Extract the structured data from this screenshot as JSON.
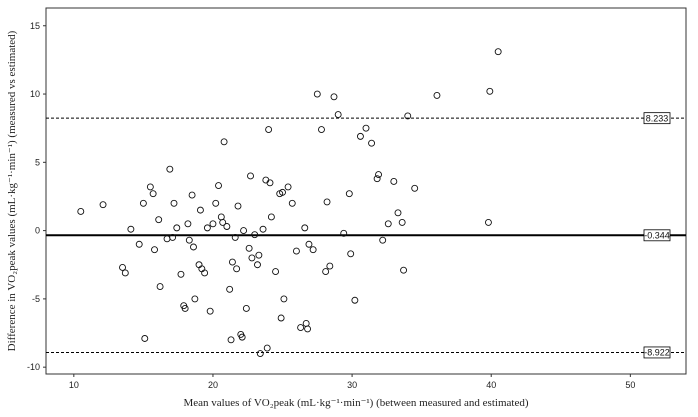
{
  "chart_data": {
    "type": "scatter",
    "title": "",
    "xlabel": "Mean values of VO₂peak (mL·kg⁻¹·min⁻¹) (between measured and estimated)",
    "ylabel": "Difference in VO₂peak values (mL·kg⁻¹·min⁻¹) (measured vs estimated)",
    "xlim": [
      8,
      54
    ],
    "ylim": [
      -10.5,
      16.3
    ],
    "xticks": [
      "10",
      "20",
      "30",
      "40",
      "50"
    ],
    "yticks": [
      "15",
      "10",
      "5",
      "0",
      "-5",
      "-10"
    ],
    "grid": false,
    "reference_lines": [
      {
        "name": "upper_loa",
        "value": 8.233,
        "label": "8.233",
        "style": "dashed"
      },
      {
        "name": "mean",
        "value": -0.344,
        "label": "-0.344",
        "style": "solid"
      },
      {
        "name": "lower_loa",
        "value": -8.922,
        "label": "-8.922",
        "style": "dashed"
      }
    ],
    "points": [
      [
        10.5,
        1.4
      ],
      [
        12.1,
        1.9
      ],
      [
        13.5,
        -2.7
      ],
      [
        13.7,
        -3.1
      ],
      [
        14.1,
        0.1
      ],
      [
        14.7,
        -1.0
      ],
      [
        15.0,
        2.0
      ],
      [
        15.1,
        -7.9
      ],
      [
        15.5,
        3.2
      ],
      [
        15.7,
        2.7
      ],
      [
        15.8,
        -1.4
      ],
      [
        16.1,
        0.8
      ],
      [
        16.2,
        -4.1
      ],
      [
        16.7,
        -0.6
      ],
      [
        16.9,
        4.5
      ],
      [
        17.2,
        2.0
      ],
      [
        17.4,
        0.2
      ],
      [
        17.7,
        -3.2
      ],
      [
        17.9,
        -5.5
      ],
      [
        18.0,
        -5.7
      ],
      [
        18.2,
        0.5
      ],
      [
        18.3,
        -0.7
      ],
      [
        18.5,
        2.6
      ],
      [
        18.6,
        -1.2
      ],
      [
        18.7,
        -5.0
      ],
      [
        19.0,
        -2.5
      ],
      [
        19.2,
        -2.8
      ],
      [
        19.4,
        -3.1
      ],
      [
        19.6,
        0.2
      ],
      [
        19.8,
        -5.9
      ],
      [
        20.0,
        0.5
      ],
      [
        20.2,
        2.0
      ],
      [
        20.4,
        3.3
      ],
      [
        20.6,
        1.0
      ],
      [
        20.7,
        0.6
      ],
      [
        20.8,
        6.5
      ],
      [
        21.0,
        0.3
      ],
      [
        21.2,
        -4.3
      ],
      [
        21.4,
        -2.3
      ],
      [
        21.6,
        -0.5
      ],
      [
        21.8,
        1.8
      ],
      [
        22.0,
        -7.6
      ],
      [
        22.2,
        0.0
      ],
      [
        22.4,
        -5.7
      ],
      [
        22.6,
        -1.3
      ],
      [
        22.8,
        -2.0
      ],
      [
        23.0,
        -0.3
      ],
      [
        23.2,
        -2.5
      ],
      [
        23.4,
        -9.0
      ],
      [
        23.6,
        0.1
      ],
      [
        23.8,
        3.7
      ],
      [
        24.0,
        7.4
      ],
      [
        24.2,
        1.0
      ],
      [
        24.5,
        -3.0
      ],
      [
        24.8,
        2.7
      ],
      [
        25.1,
        -5.0
      ],
      [
        25.4,
        3.2
      ],
      [
        25.7,
        2.0
      ],
      [
        26.0,
        -1.5
      ],
      [
        26.3,
        -7.1
      ],
      [
        26.6,
        0.2
      ],
      [
        26.9,
        -1.0
      ],
      [
        27.2,
        -1.4
      ],
      [
        27.5,
        10.0
      ],
      [
        27.8,
        7.4
      ],
      [
        28.1,
        -3.0
      ],
      [
        28.4,
        -2.6
      ],
      [
        28.7,
        9.8
      ],
      [
        29.0,
        8.5
      ],
      [
        29.4,
        -0.2
      ],
      [
        29.8,
        2.7
      ],
      [
        30.2,
        -5.1
      ],
      [
        30.6,
        6.9
      ],
      [
        31.0,
        7.5
      ],
      [
        31.4,
        6.4
      ],
      [
        31.8,
        3.8
      ],
      [
        32.2,
        -0.7
      ],
      [
        32.6,
        0.5
      ],
      [
        33.0,
        3.6
      ],
      [
        33.3,
        1.3
      ],
      [
        33.6,
        0.6
      ],
      [
        34.0,
        8.4
      ],
      [
        34.5,
        3.1
      ],
      [
        36.1,
        9.9
      ],
      [
        39.8,
        0.6
      ],
      [
        39.9,
        10.2
      ],
      [
        40.5,
        13.1
      ],
      [
        23.9,
        -8.6
      ],
      [
        22.1,
        -7.8
      ],
      [
        21.3,
        -8.0
      ],
      [
        26.7,
        -6.8
      ],
      [
        26.8,
        -7.2
      ],
      [
        24.9,
        -6.4
      ],
      [
        22.7,
        4.0
      ],
      [
        24.1,
        3.5
      ],
      [
        25.0,
        2.8
      ],
      [
        23.3,
        -1.8
      ],
      [
        31.9,
        4.1
      ],
      [
        29.9,
        -1.7
      ],
      [
        28.2,
        2.1
      ],
      [
        21.7,
        -2.8
      ],
      [
        19.1,
        1.5
      ],
      [
        17.1,
        -0.5
      ],
      [
        33.7,
        -2.9
      ]
    ]
  }
}
